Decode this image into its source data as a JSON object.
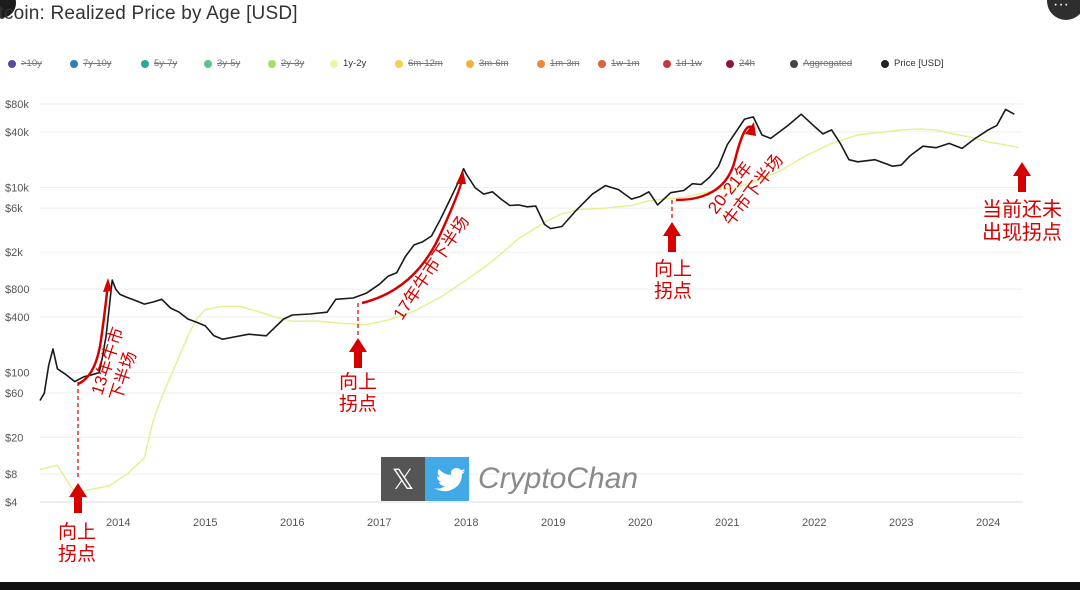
{
  "title": "itcoin: Realized Price by Age [USD]",
  "colors": {
    "price": "#1a1a1a",
    "band": "#e6ef8f",
    "annotation": "#d50000",
    "grid": "#eeeeee"
  },
  "legend": [
    {
      "label": ">10y",
      "color": "#5b4a9a",
      "active": false
    },
    {
      "label": "7y-10y",
      "color": "#2c7fb8",
      "active": false
    },
    {
      "label": "5y-7y",
      "color": "#2aa79b",
      "active": false
    },
    {
      "label": "3y-5y",
      "color": "#5cc48a",
      "active": false
    },
    {
      "label": "2y-3y",
      "color": "#a9dc6b",
      "active": false
    },
    {
      "label": "1y-2y",
      "color": "#f2f5a0",
      "active": true
    },
    {
      "label": "6m-12m",
      "color": "#f6d24a",
      "active": false
    },
    {
      "label": "3m-6m",
      "color": "#f3b13a",
      "active": false
    },
    {
      "label": "1m-3m",
      "color": "#ec8a3a",
      "active": false
    },
    {
      "label": "1w-1m",
      "color": "#e0603a",
      "active": false
    },
    {
      "label": "1d-1w",
      "color": "#c9373e",
      "active": false
    },
    {
      "label": "24h",
      "color": "#8e1538",
      "active": false
    },
    {
      "label": "Aggregated",
      "color": "#444444",
      "active": false
    },
    {
      "label": "Price [USD]",
      "color": "#222222",
      "active": true
    }
  ],
  "chart_data": {
    "type": "line",
    "title": "itcoin: Realized Price by Age [USD]",
    "xlabel": "",
    "ylabel": "",
    "yscale": "log",
    "xlim": [
      2013.1,
      2024.4
    ],
    "y_ticks": [
      "$80k",
      "$40k",
      "$10k",
      "$6k",
      "$2k",
      "$800",
      "$400",
      "$100",
      "$60",
      "$20",
      "$8",
      "$4"
    ],
    "y_tick_values": [
      80000,
      40000,
      10000,
      6000,
      2000,
      800,
      400,
      100,
      60,
      20,
      8,
      4
    ],
    "x_ticks": [
      "2014",
      "2015",
      "2016",
      "2017",
      "2018",
      "2019",
      "2020",
      "2021",
      "2022",
      "2023",
      "2024"
    ],
    "x_tick_values": [
      2014,
      2015,
      2016,
      2017,
      2018,
      2019,
      2020,
      2021,
      2022,
      2023,
      2024
    ],
    "grid": true,
    "legend_position": "top",
    "series": [
      {
        "name": "Price [USD]",
        "color": "#1a1a1a",
        "x": [
          2013.1,
          2013.15,
          2013.2,
          2013.25,
          2013.3,
          2013.4,
          2013.5,
          2013.6,
          2013.7,
          2013.78,
          2013.82,
          2013.86,
          2013.9,
          2013.93,
          2013.97,
          2014.02,
          2014.1,
          2014.2,
          2014.3,
          2014.4,
          2014.5,
          2014.6,
          2014.7,
          2014.8,
          2014.9,
          2015.0,
          2015.1,
          2015.2,
          2015.3,
          2015.5,
          2015.7,
          2015.9,
          2016.0,
          2016.2,
          2016.4,
          2016.5,
          2016.7,
          2016.85,
          2017.0,
          2017.1,
          2017.2,
          2017.3,
          2017.4,
          2017.5,
          2017.6,
          2017.7,
          2017.8,
          2017.9,
          2017.97,
          2018.0,
          2018.1,
          2018.2,
          2018.3,
          2018.4,
          2018.5,
          2018.6,
          2018.7,
          2018.8,
          2018.9,
          2018.97,
          2019.1,
          2019.25,
          2019.45,
          2019.6,
          2019.75,
          2019.9,
          2020.0,
          2020.1,
          2020.2,
          2020.35,
          2020.5,
          2020.6,
          2020.7,
          2020.8,
          2020.9,
          2021.0,
          2021.1,
          2021.2,
          2021.3,
          2021.4,
          2021.5,
          2021.6,
          2021.7,
          2021.85,
          2022.0,
          2022.1,
          2022.2,
          2022.3,
          2022.4,
          2022.5,
          2022.7,
          2022.9,
          2023.0,
          2023.1,
          2023.25,
          2023.4,
          2023.55,
          2023.7,
          2023.85,
          2024.0,
          2024.1,
          2024.2,
          2024.3
        ],
        "y": [
          50,
          60,
          120,
          180,
          110,
          95,
          80,
          90,
          95,
          100,
          150,
          250,
          550,
          1000,
          800,
          700,
          650,
          600,
          550,
          580,
          620,
          500,
          450,
          380,
          350,
          320,
          250,
          230,
          240,
          260,
          250,
          380,
          420,
          430,
          450,
          620,
          640,
          720,
          900,
          1100,
          1200,
          1800,
          2400,
          2600,
          3000,
          4500,
          7000,
          11000,
          16000,
          14000,
          10000,
          8500,
          9000,
          7500,
          6400,
          6500,
          6200,
          6300,
          4000,
          3600,
          3800,
          5500,
          8500,
          10500,
          9500,
          7500,
          8000,
          9000,
          6500,
          8800,
          9300,
          11000,
          10800,
          13000,
          17000,
          29000,
          40000,
          55000,
          58000,
          37000,
          34000,
          40000,
          47000,
          62000,
          46000,
          38000,
          42000,
          30000,
          20000,
          19000,
          20000,
          17000,
          17500,
          22000,
          28000,
          27000,
          30000,
          26500,
          34000,
          42000,
          47000,
          70000,
          62000
        ]
      },
      {
        "name": "1y-2y",
        "color": "#e6ef8f",
        "x": [
          2013.1,
          2013.3,
          2013.5,
          2013.7,
          2013.9,
          2014.1,
          2014.3,
          2014.4,
          2014.5,
          2014.6,
          2014.7,
          2014.8,
          2014.9,
          2015.0,
          2015.2,
          2015.4,
          2015.6,
          2015.8,
          2016.0,
          2016.3,
          2016.6,
          2016.85,
          2017.1,
          2017.4,
          2017.7,
          2018.0,
          2018.3,
          2018.6,
          2018.9,
          2019.1,
          2019.3,
          2019.6,
          2019.9,
          2020.1,
          2020.3,
          2020.5,
          2020.7,
          2020.9,
          2021.1,
          2021.3,
          2021.6,
          2021.9,
          2022.2,
          2022.5,
          2022.8,
          2023.0,
          2023.2,
          2023.4,
          2023.6,
          2023.8,
          2024.0,
          2024.2,
          2024.35
        ],
        "y": [
          9,
          10,
          5,
          5.5,
          6,
          8,
          12,
          30,
          55,
          90,
          150,
          250,
          380,
          480,
          520,
          520,
          460,
          400,
          360,
          360,
          340,
          330,
          370,
          460,
          650,
          1000,
          1600,
          2800,
          4200,
          5200,
          5800,
          6000,
          6400,
          7200,
          7600,
          7800,
          8600,
          9500,
          10000,
          11500,
          15000,
          22000,
          30000,
          37000,
          40000,
          42000,
          43000,
          42000,
          38000,
          35000,
          31000,
          29000,
          27000
        ]
      }
    ],
    "annotations": [
      {
        "text": "向上\n拐点",
        "x": 2013.78,
        "y": 4
      },
      {
        "text": "13年牛市\n下半场",
        "x": 2013.95,
        "y": 120
      },
      {
        "text": "向上\n拐点",
        "x": 2016.85,
        "y": 130
      },
      {
        "text": "17年牛市下半场",
        "x": 2017.3,
        "y": 1400
      },
      {
        "text": "向上\n拐点",
        "x": 2020.0,
        "y": 3500
      },
      {
        "text": "20-21年\n牛市下半场",
        "x": 2020.6,
        "y": 5000
      },
      {
        "text": "当前还未\n出现拐点",
        "x": 2024.2,
        "y": 15000
      }
    ]
  },
  "watermark": {
    "text": "CryptoChan",
    "x_glyph": "𝕏"
  }
}
